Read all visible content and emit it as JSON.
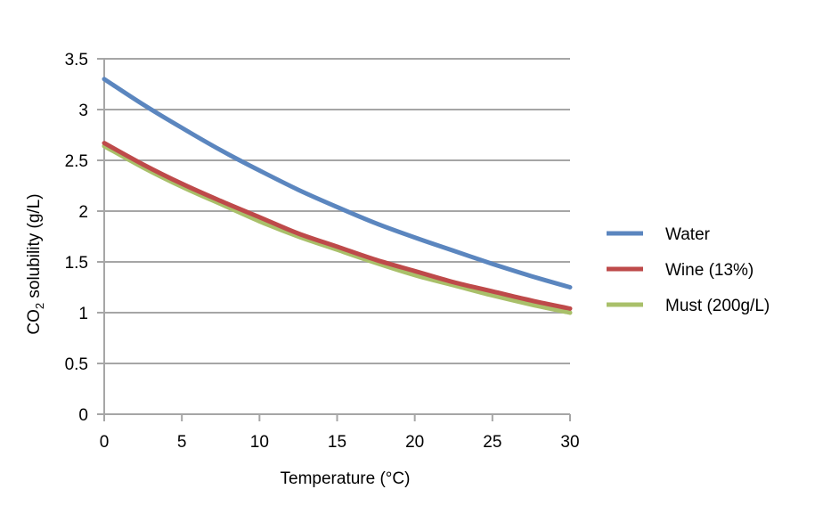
{
  "chart_data": {
    "type": "line",
    "title": "",
    "xlabel": "Temperature (°C)",
    "ylabel": {
      "prefix": "CO",
      "subscript": "2",
      "suffix": " solubility (g/L)"
    },
    "xlim": [
      0,
      30
    ],
    "ylim": [
      0,
      3.5
    ],
    "xticks": [
      0,
      5,
      10,
      15,
      20,
      25,
      30
    ],
    "yticks": [
      0,
      0.5,
      1,
      1.5,
      2,
      2.5,
      3,
      3.5
    ],
    "xtick_labels": [
      "0",
      "5",
      "10",
      "15",
      "20",
      "25",
      "30"
    ],
    "ytick_labels": [
      "0",
      "0.5",
      "1",
      "1.5",
      "2",
      "2.5",
      "3",
      "3.5"
    ],
    "grid": "horizontal",
    "legend_position": "right",
    "x": [
      0,
      2.5,
      5,
      7.5,
      10,
      12.5,
      15,
      17.5,
      20,
      22.5,
      25,
      27.5,
      30
    ],
    "series": [
      {
        "name": "Water",
        "color": "#5b86bf",
        "values": [
          3.3,
          3.05,
          2.82,
          2.6,
          2.4,
          2.21,
          2.04,
          1.88,
          1.74,
          1.61,
          1.48,
          1.36,
          1.25
        ]
      },
      {
        "name": "Wine (13%)",
        "color": "#be4a4a",
        "values": [
          2.67,
          2.46,
          2.27,
          2.1,
          1.94,
          1.78,
          1.65,
          1.52,
          1.41,
          1.3,
          1.21,
          1.12,
          1.04
        ]
      },
      {
        "name": "Must (200g/L)",
        "color": "#a9c06a",
        "values": [
          2.64,
          2.43,
          2.24,
          2.07,
          1.9,
          1.75,
          1.62,
          1.49,
          1.37,
          1.27,
          1.17,
          1.08,
          1.0
        ]
      }
    ]
  }
}
